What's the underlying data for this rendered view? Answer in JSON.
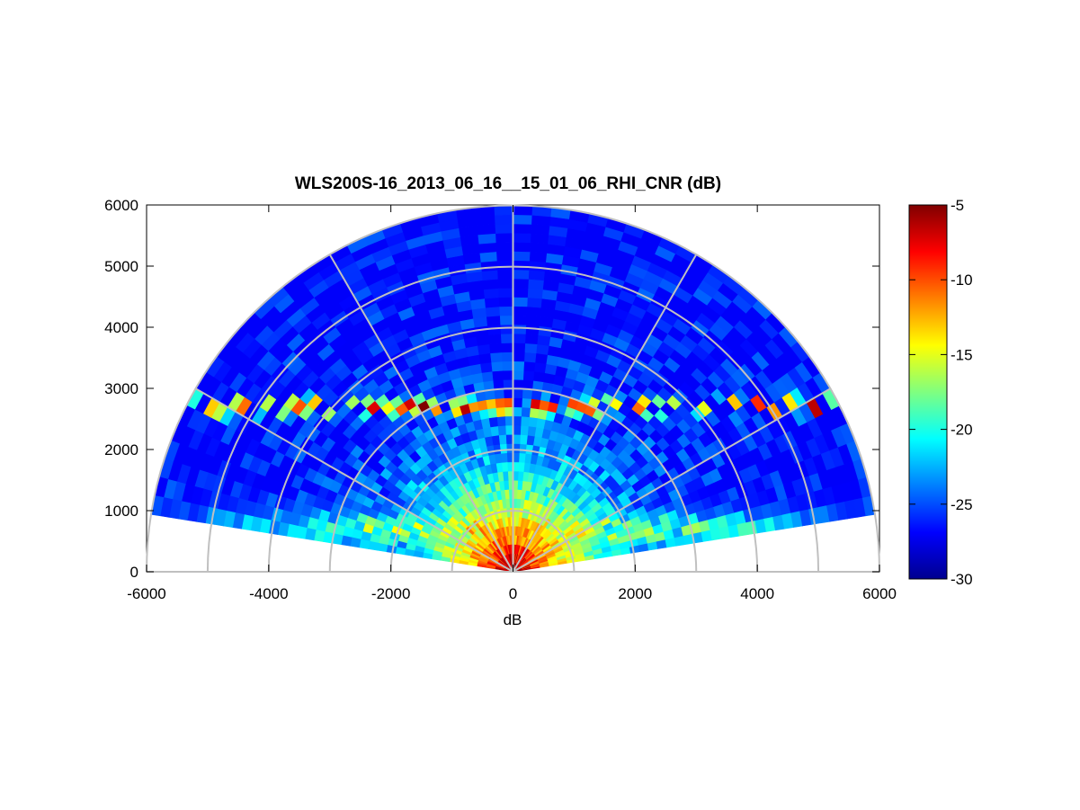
{
  "chart_data": {
    "type": "heatmap",
    "subtype": "polar-rhi-scan",
    "title": "WLS200S-16_2013_06_16__15_01_06_RHI_CNR (dB)",
    "xlabel": "dB",
    "ylabel": "",
    "xlim": [
      -6000,
      6000
    ],
    "ylim": [
      0,
      6000
    ],
    "x_ticks": [
      -6000,
      -4000,
      -2000,
      0,
      2000,
      4000,
      6000
    ],
    "y_ticks": [
      0,
      1000,
      2000,
      3000,
      4000,
      5000,
      6000
    ],
    "polar_grid": {
      "range_rings": [
        1000,
        2000,
        3000,
        4000,
        5000,
        6000
      ],
      "spoke_angles_deg": [
        0,
        30,
        60,
        90,
        120,
        150,
        180
      ]
    },
    "scan": {
      "elevation_range_deg": [
        9,
        171
      ],
      "max_range": 6000
    },
    "colorbar": {
      "colormap": "jet",
      "range": [
        -30,
        -5
      ],
      "ticks": [
        -5,
        -10,
        -15,
        -20,
        -25,
        -30
      ]
    },
    "features": {
      "near_field_cnr_db": -6,
      "background_cnr_db": -27,
      "aerosol_layer_top_altitude": 2700,
      "aerosol_layer_top_cnr_db": -8
    }
  }
}
